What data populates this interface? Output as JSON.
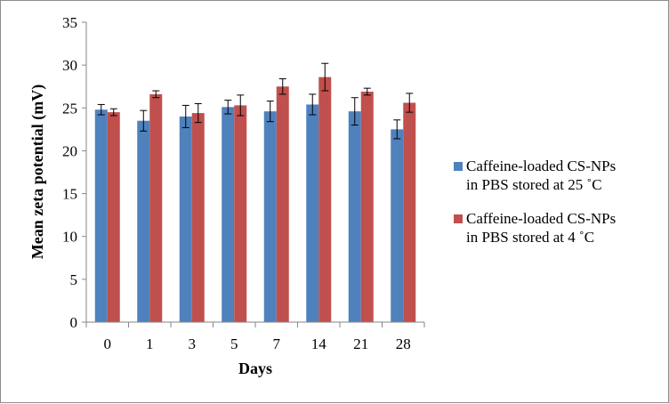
{
  "chart_data": {
    "type": "bar",
    "title": "",
    "xlabel": "Days",
    "ylabel": "Mean zeta potential (mV)",
    "ylim": [
      0,
      35
    ],
    "yticks": [
      0,
      5,
      10,
      15,
      20,
      25,
      30,
      35
    ],
    "categories": [
      "0",
      "1",
      "3",
      "5",
      "7",
      "14",
      "21",
      "28"
    ],
    "grid": false,
    "legend_position": "right",
    "series": [
      {
        "name": "Caffeine-loaded CS-NPs in PBS stored at 25 ˚C",
        "legend_lines": [
          "Caffeine-loaded CS-NPs",
          "in PBS stored at 25 ˚C"
        ],
        "color": "#4f81bd",
        "values": [
          24.8,
          23.5,
          24.0,
          25.1,
          24.6,
          25.4,
          24.6,
          22.5
        ],
        "errors": [
          0.6,
          1.2,
          1.3,
          0.8,
          1.2,
          1.2,
          1.6,
          1.1
        ]
      },
      {
        "name": "Caffeine-loaded CS-NPs in PBS stored at 4 ˚C",
        "legend_lines": [
          "Caffeine-loaded CS-NPs",
          "in PBS stored at 4 ˚C"
        ],
        "color": "#c0504d",
        "values": [
          24.5,
          26.6,
          24.4,
          25.3,
          27.5,
          28.6,
          26.9,
          25.6
        ],
        "errors": [
          0.4,
          0.4,
          1.1,
          1.2,
          0.9,
          1.6,
          0.4,
          1.1
        ]
      }
    ]
  }
}
